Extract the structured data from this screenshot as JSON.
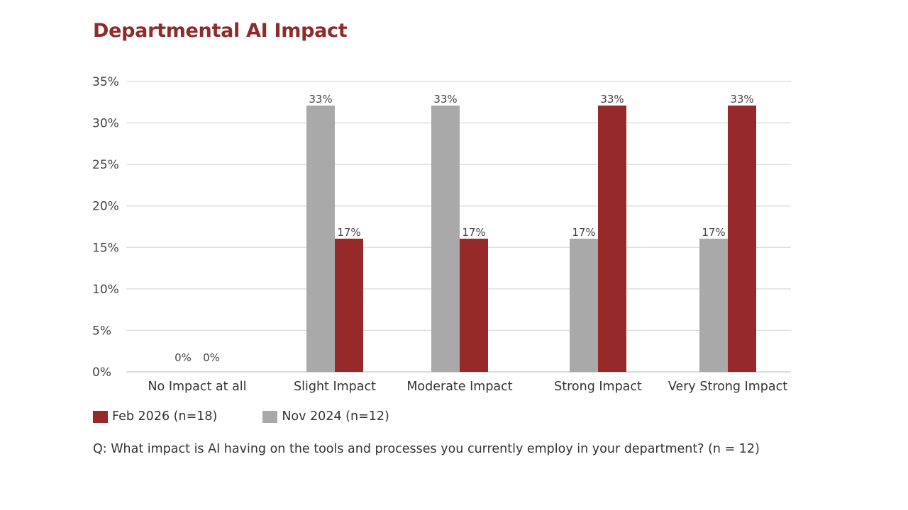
{
  "chart_data": {
    "type": "bar",
    "title": "Departmental AI Impact",
    "xlabel": "",
    "ylabel": "",
    "ylim": [
      0,
      35
    ],
    "yticks": [
      "0%",
      "5%",
      "10%",
      "15%",
      "20%",
      "25%",
      "30%",
      "35%"
    ],
    "ytick_values": [
      0,
      5,
      10,
      15,
      20,
      25,
      30,
      35
    ],
    "grid": true,
    "legend_position": "bottom-left",
    "categories": [
      "No Impact at all",
      "Slight Impact",
      "Moderate Impact",
      "Strong Impact",
      "Very Strong Impact"
    ],
    "series": [
      {
        "name": "Nov 2024 (n=12)",
        "color": "#a9a9a9",
        "values": [
          0,
          33.33,
          33.33,
          16.67,
          16.67
        ],
        "labels": [
          "0%",
          "33%",
          "33%",
          "17%",
          "17%"
        ]
      },
      {
        "name": "Feb 2026 (n=18)",
        "color": "#962a2a",
        "values": [
          0,
          16.67,
          16.67,
          33.33,
          33.33
        ],
        "labels": [
          "0%",
          "17%",
          "17%",
          "33%",
          "33%"
        ]
      }
    ],
    "legend": [
      {
        "label": "Feb 2026 (n=18)",
        "color": "#962a2a"
      },
      {
        "label": "Nov 2024 (n=12)",
        "color": "#a9a9a9"
      }
    ],
    "footnote": "Q: What impact is AI having on the tools and processes you currently employ in your department? (n = 12)"
  }
}
